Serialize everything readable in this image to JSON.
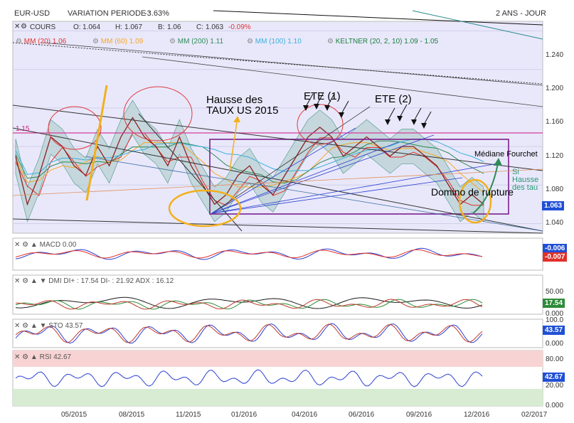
{
  "header": {
    "symbol": "EUR-USD",
    "variation_label": "VARIATION PERIODE :",
    "variation_value": "-3.63%",
    "timeframe": "2 ANS - JOUR"
  },
  "legend": {
    "cours_label": "COURS",
    "ohlc": {
      "o_label": "O:",
      "o": "1.064",
      "h_label": "H:",
      "h": "1.067",
      "b_label": "B:",
      "b": "1.06",
      "c_label": "C:",
      "c": "1.063",
      "c_change": "-0.09%"
    },
    "moving_averages": [
      {
        "label": "MM (20)",
        "value": "1.06",
        "color": "#e0322b"
      },
      {
        "label": "MM (60)",
        "value": "1.09",
        "color": "#f5a623"
      },
      {
        "label": "MM (200)",
        "value": "1.11",
        "color": "#2e8b57"
      },
      {
        "label": "MM (100)",
        "value": "1.10",
        "color": "#3ab0d8"
      },
      {
        "label": "KELTNER (20, 2, 10)",
        "value": "1.09 - 1.05",
        "color": "#1a7f3c"
      }
    ]
  },
  "annotations": {
    "hausse": "Hausse des\nTAUX US 2015",
    "ete1": "ETE (1)",
    "ete2": "ETE (2)",
    "mediane": "Médiane Fourchet",
    "domino": "Domino de rupture",
    "level_115": "1.15",
    "si_hausse": "Si Hausse des tau"
  },
  "price_tag": {
    "value": "1.063",
    "color": "#1f4fd6"
  },
  "macd": {
    "label": "MACD",
    "value": "0.00",
    "tag1": "-0.006",
    "tag2": "-0.007"
  },
  "dmi": {
    "label": "DMI",
    "text": "DI+ : 17.54 DI- : 21.92 ADX : 16.12",
    "tag": "17.54",
    "axis": [
      "50.00",
      "0.000"
    ]
  },
  "sto": {
    "label": "STO",
    "value": "43.57",
    "tag": "43.57",
    "axis": [
      "100.0",
      "0.000"
    ]
  },
  "rsi": {
    "label": "RSI",
    "value": "42.67",
    "tag": "42.67",
    "axis": [
      "80.00",
      "20.00",
      "0.000"
    ]
  },
  "chart_data": {
    "type": "line",
    "x_ticks": [
      "05/2015",
      "08/2015",
      "11/2015",
      "01/2016",
      "04/2016",
      "06/2016",
      "09/2016",
      "12/2016",
      "02/2017"
    ],
    "y_ticks": [
      "1.240",
      "1.200",
      "1.160",
      "1.120",
      "1.080",
      "1.040"
    ],
    "ylim": [
      1.03,
      1.25
    ],
    "series": [
      {
        "name": "COURS",
        "values": [
          1.11,
          1.06,
          1.09,
          1.13,
          1.12,
          1.1,
          1.09,
          1.12,
          1.1,
          1.13,
          1.15,
          1.13,
          1.12,
          1.1,
          1.13,
          1.1,
          1.08,
          1.06,
          1.07,
          1.09,
          1.1,
          1.08,
          1.07,
          1.09,
          1.11,
          1.13,
          1.14,
          1.13,
          1.11,
          1.12,
          1.13,
          1.12,
          1.11,
          1.12,
          1.12,
          1.11,
          1.1,
          1.08,
          1.06,
          1.07,
          1.06
        ]
      }
    ]
  }
}
